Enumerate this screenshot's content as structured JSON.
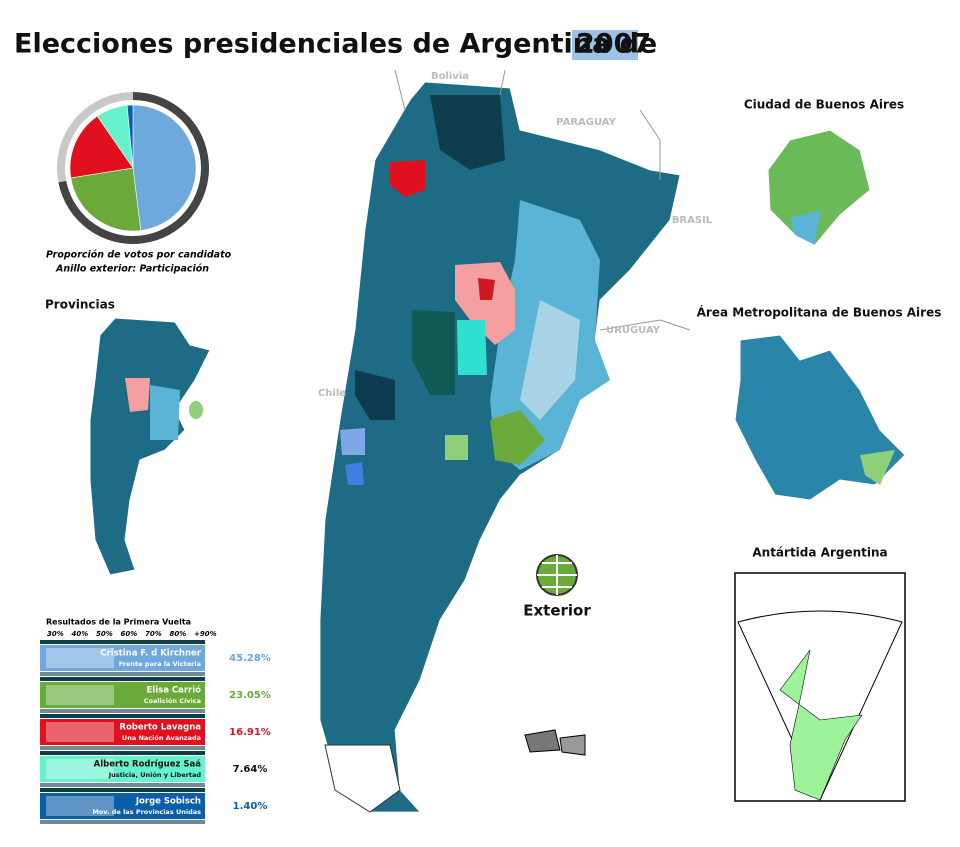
{
  "title": "Elecciones presidenciales de Argentina de",
  "year": "2007",
  "map": {
    "countries": [
      "Bolivia",
      "PARAGUAY",
      "BRASIL",
      "URUGUAY",
      "Chile"
    ],
    "insets": [
      "Provincias",
      "Ciudad de Buenos Aires",
      "Área Metropolitana de Buenos Aires",
      "Antártida Argentina"
    ],
    "exterior": "Exterior"
  },
  "pie": {
    "caption": [
      "Proporción de votos por candidato",
      "Anillo exterior: Participación"
    ],
    "turnout": 72,
    "turnout_color": "#444444",
    "rest_color": "#c8c8c8"
  },
  "legend": {
    "title": "Resultados de la Primera Vuelta",
    "scale": [
      "30%",
      "40%",
      "50%",
      "60%",
      "70%",
      "80%",
      "+90%"
    ]
  },
  "candidates": [
    {
      "name": "Cristina F. d Kirchner",
      "party": "Frente para la Victoria",
      "value": 45.28,
      "value_label": "45.28%",
      "color": "#6fa8dc"
    },
    {
      "name": "Elisa Carrió",
      "party": "Coalición Cívica",
      "value": 23.05,
      "value_label": "23.05%",
      "color": "#6aaa3a"
    },
    {
      "name": "Roberto Lavagna",
      "party": "Una Nación Avanzada",
      "value": 16.91,
      "value_label": "16.91%",
      "color": "#e0101e"
    },
    {
      "name": "Alberto Rodríguez Saá",
      "party": "Justicia, Unión y Libertad",
      "value": 7.64,
      "value_label": "7.64%",
      "color": "#66f2cc"
    },
    {
      "name": "Jorge Sobisch",
      "party": "Mov. de las Provincias Unidas",
      "value": 1.4,
      "value_label": "1.40%",
      "color": "#0b5ea8"
    }
  ]
}
